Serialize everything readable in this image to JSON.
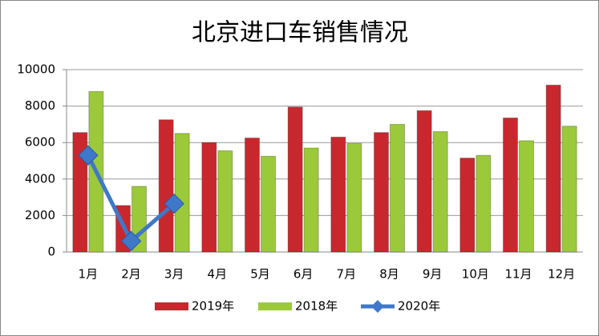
{
  "chart_data": {
    "type": "bar",
    "title": "北京进口车销售情况",
    "categories": [
      "1月",
      "2月",
      "3月",
      "4月",
      "5月",
      "6月",
      "7月",
      "8月",
      "9月",
      "10月",
      "11月",
      "12月"
    ],
    "series": [
      {
        "name": "2019年",
        "color": "#c8282d",
        "values": [
          6550,
          2550,
          7250,
          6000,
          6250,
          7950,
          6300,
          6550,
          7750,
          5150,
          7350,
          9150
        ]
      },
      {
        "name": "2018年",
        "color": "#9bc93a",
        "values": [
          8800,
          3600,
          6500,
          5550,
          5250,
          5700,
          5950,
          7000,
          6600,
          5300,
          6100,
          6900
        ]
      },
      {
        "name": "2020年",
        "color": "#3f78c8",
        "type": "line",
        "values": [
          5300,
          600,
          2650,
          null,
          null,
          null,
          null,
          null,
          null,
          null,
          null,
          null
        ]
      }
    ],
    "ylim": [
      0,
      10000
    ],
    "yticks": [
      0,
      2000,
      4000,
      6000,
      8000,
      10000
    ],
    "grid": true,
    "legend": "bottom"
  }
}
